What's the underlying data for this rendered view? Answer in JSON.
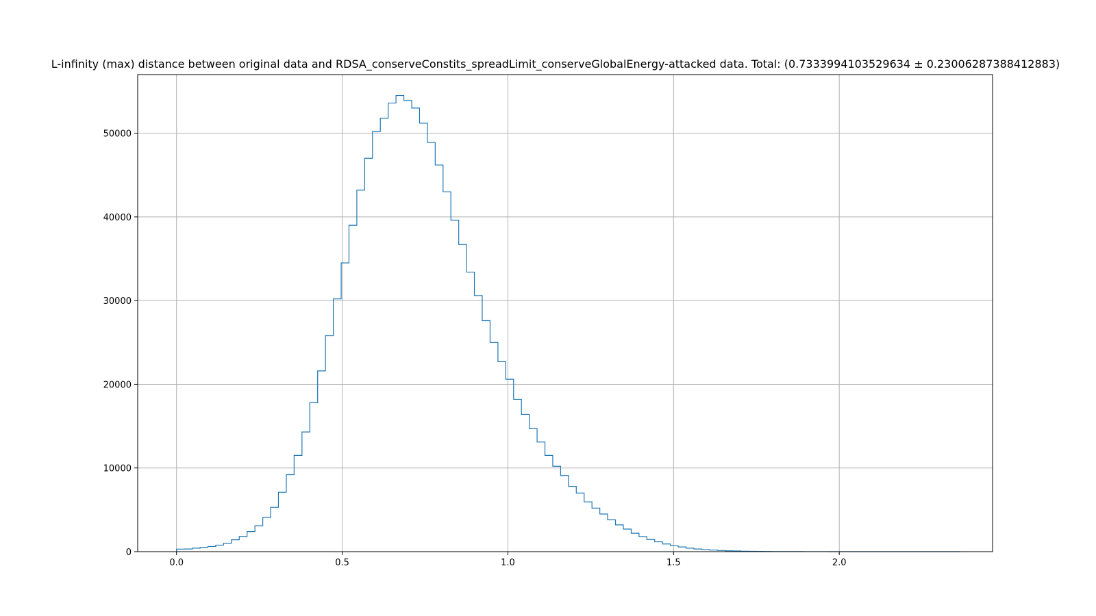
{
  "chart_data": {
    "type": "histogram",
    "title": "L-infinity (max) distance between original data and RDSA_conserveConstits_spreadLimit_conserveGlobalEnergy-attacked data. Total: (0.7333994103529634 ± 0.23006287388412883)",
    "xlabel": "",
    "ylabel": "",
    "xlim": [
      -0.1173,
      2.4627
    ],
    "ylim": [
      0,
      57000
    ],
    "grid": true,
    "line_color": "#1f77b4",
    "x_ticks": [
      {
        "value": 0.0,
        "label": "0.0"
      },
      {
        "value": 0.5,
        "label": "0.5"
      },
      {
        "value": 1.0,
        "label": "1.0"
      },
      {
        "value": 1.5,
        "label": "1.5"
      },
      {
        "value": 2.0,
        "label": "2.0"
      }
    ],
    "y_ticks": [
      {
        "value": 0,
        "label": "0"
      },
      {
        "value": 10000,
        "label": "10000"
      },
      {
        "value": 20000,
        "label": "20000"
      },
      {
        "value": 30000,
        "label": "30000"
      },
      {
        "value": 40000,
        "label": "40000"
      },
      {
        "value": 50000,
        "label": "50000"
      }
    ],
    "bin_edges": [
      0.0,
      0.0237,
      0.0473,
      0.071,
      0.0946,
      0.1183,
      0.1419,
      0.1656,
      0.1892,
      0.2129,
      0.2366,
      0.2602,
      0.2839,
      0.3075,
      0.3312,
      0.3548,
      0.3785,
      0.4021,
      0.4258,
      0.4494,
      0.4731,
      0.4968,
      0.5204,
      0.5441,
      0.5677,
      0.5914,
      0.615,
      0.6387,
      0.6623,
      0.686,
      0.7097,
      0.7333,
      0.757,
      0.7806,
      0.8043,
      0.8279,
      0.8516,
      0.8752,
      0.8989,
      0.9225,
      0.9462,
      0.9699,
      0.9935,
      1.0172,
      1.0408,
      1.0645,
      1.0881,
      1.1118,
      1.1354,
      1.1591,
      1.1828,
      1.2064,
      1.2301,
      1.2537,
      1.2774,
      1.301,
      1.3247,
      1.3483,
      1.372,
      1.3957,
      1.4193,
      1.443,
      1.4666,
      1.4903,
      1.5139,
      1.5376,
      1.5612,
      1.5849,
      1.6085,
      1.6322,
      1.6559,
      1.6795,
      1.7032,
      1.7268,
      1.7505,
      1.7741,
      1.7978,
      1.8214,
      1.8451,
      1.8688,
      1.8924,
      1.9161,
      1.9397,
      1.9634,
      1.987,
      2.0107,
      2.0343,
      2.058,
      2.0816,
      2.1053,
      2.129,
      2.1526,
      2.1763,
      2.1999,
      2.2236,
      2.2472,
      2.2709,
      2.2945,
      2.3182,
      2.3419,
      2.3655
    ],
    "counts": [
      300,
      320,
      420,
      520,
      620,
      780,
      1000,
      1420,
      1820,
      2400,
      3100,
      4100,
      5300,
      7100,
      9200,
      11500,
      14300,
      17800,
      21600,
      25800,
      30200,
      34500,
      39000,
      43200,
      47000,
      50200,
      51800,
      53600,
      54500,
      53900,
      53000,
      51200,
      48900,
      46200,
      43000,
      39600,
      36700,
      33400,
      30600,
      27600,
      25000,
      22700,
      20600,
      18200,
      16400,
      14700,
      13100,
      11500,
      10200,
      9100,
      7800,
      7000,
      5950,
      5200,
      4500,
      3800,
      3200,
      2700,
      2200,
      1800,
      1450,
      1180,
      920,
      700,
      560,
      420,
      320,
      250,
      190,
      140,
      100,
      80,
      55,
      40,
      30,
      22,
      16,
      12,
      9,
      7,
      5,
      4,
      3,
      2,
      2,
      1,
      1,
      1,
      1,
      1,
      1,
      0,
      0,
      0,
      0,
      0,
      0,
      0,
      0,
      0
    ]
  }
}
